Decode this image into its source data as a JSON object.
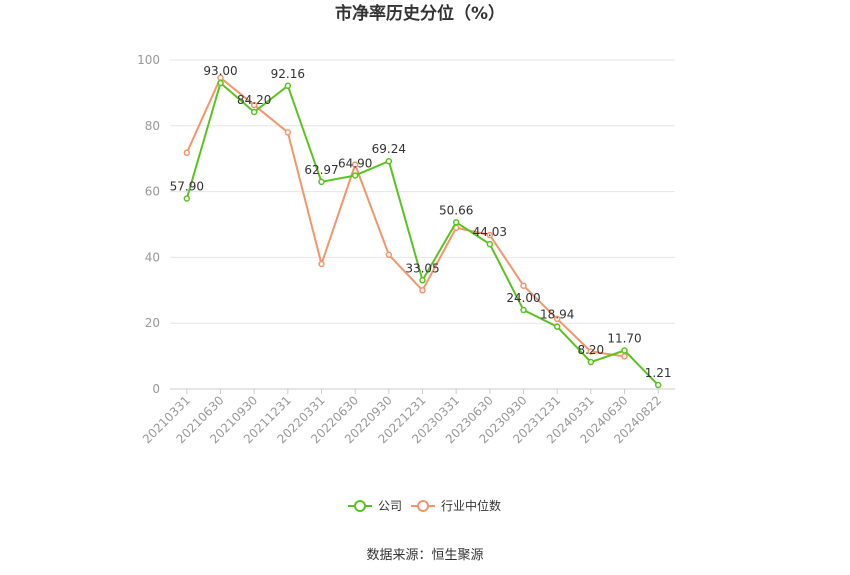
{
  "chart_data": {
    "type": "line",
    "title": "市净率历史分位（%）",
    "categories": [
      "20210331",
      "20210630",
      "20210930",
      "20211231",
      "20220331",
      "20220630",
      "20220930",
      "20221231",
      "20230331",
      "20230630",
      "20230930",
      "20231231",
      "20240331",
      "20240630",
      "20240822"
    ],
    "series": [
      {
        "name": "公司",
        "color": "#5ac31f",
        "values": [
          57.9,
          93.0,
          84.2,
          92.16,
          62.97,
          64.9,
          69.24,
          33.05,
          50.66,
          44.03,
          24.0,
          18.94,
          8.2,
          11.7,
          1.21
        ],
        "labels": [
          "57.90",
          "93.00",
          "84.20",
          "92.16",
          "62.97",
          "64.90",
          "69.24",
          "33.05",
          "50.66",
          "44.03",
          "24.00",
          "18.94",
          "8.20",
          "11.70",
          "1.21"
        ]
      },
      {
        "name": "行业中位数",
        "color": "#f4956b",
        "values": [
          71.8,
          94.6,
          86.3,
          78.0,
          38.0,
          68.2,
          40.8,
          30.0,
          49.0,
          46.8,
          31.4,
          21.3,
          11.4,
          9.9,
          null
        ]
      }
    ],
    "yticks": [
      "0",
      "20",
      "40",
      "60",
      "80",
      "100"
    ],
    "ylim": [
      0,
      100
    ],
    "grid": true,
    "legend_position": "bottom"
  },
  "source_text": "数据来源：恒生聚源"
}
